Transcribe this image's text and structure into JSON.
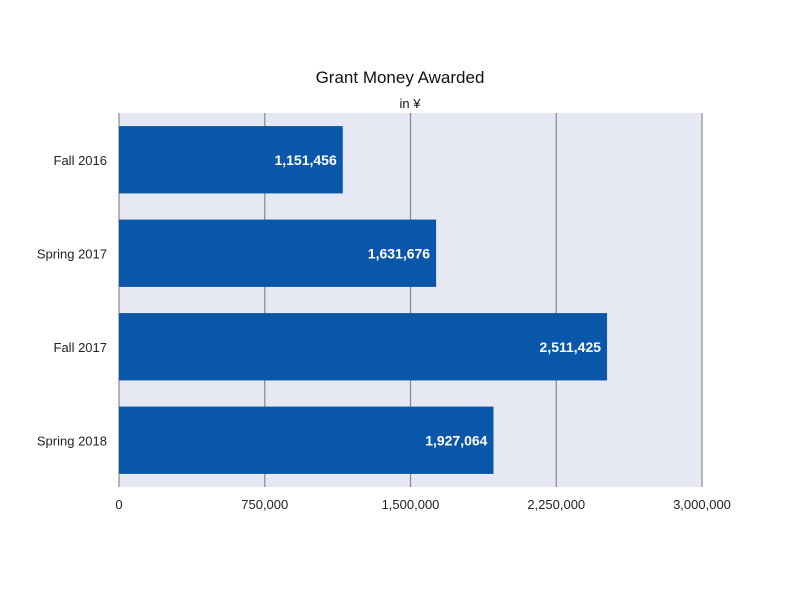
{
  "chart_data": {
    "type": "bar",
    "orientation": "horizontal",
    "title": "Grant Money Awarded",
    "subtitle": "in ¥",
    "categories": [
      "Fall 2016",
      "Spring 2017",
      "Fall 2017",
      "Spring 2018"
    ],
    "values": [
      1151456,
      1631676,
      2511425,
      1927064
    ],
    "value_labels": [
      "1,151,456",
      "1,631,676",
      "2,511,425",
      "1,927,064"
    ],
    "xlim": [
      0,
      3000000
    ],
    "x_ticks": [
      0,
      750000,
      1500000,
      2250000,
      3000000
    ],
    "x_tick_labels": [
      "0",
      "750,000",
      "1,500,000",
      "2,250,000",
      "3,000,000"
    ],
    "grid": true,
    "colors": {
      "bar": "#0a56a8",
      "plot_background": "#e6e8f4",
      "gridline": "#8a8a8a",
      "value_label": "#ffffff"
    }
  }
}
